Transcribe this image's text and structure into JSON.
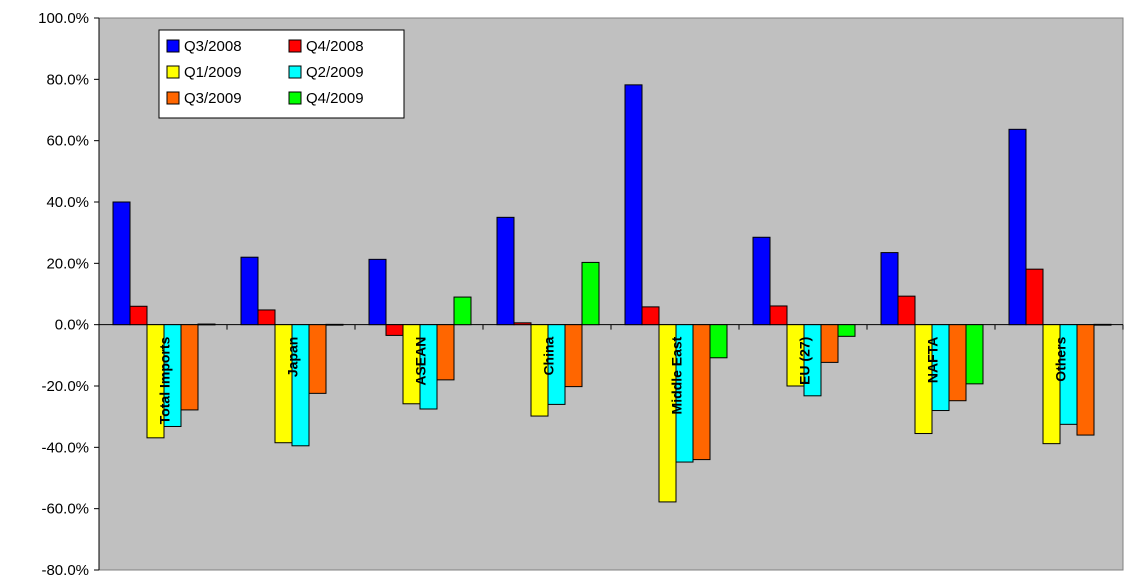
{
  "chart_data": {
    "type": "bar",
    "title": "",
    "xlabel": "",
    "ylabel": "",
    "ylim": [
      -80,
      100
    ],
    "ytick_labels": [
      "100.0%",
      "80.0%",
      "60.0%",
      "40.0%",
      "20.0%",
      "0.0%",
      "-20.0%",
      "-40.0%",
      "-60.0%",
      "-80.0%"
    ],
    "grid": false,
    "plot_background": "#c0c0c0",
    "legend_placement": "top-left",
    "categories": [
      "Total Imports",
      "Japan",
      "ASEAN",
      "China",
      "Middle East",
      "EU (27)",
      "NAFTA",
      "Others"
    ],
    "series": [
      {
        "name": "Q3/2008",
        "color": "#0000ff",
        "values": [
          40.0,
          22.0,
          21.3,
          35.0,
          78.2,
          28.5,
          23.5,
          63.7
        ]
      },
      {
        "name": "Q4/2008",
        "color": "#ff0000",
        "values": [
          6.0,
          4.8,
          -3.5,
          0.6,
          5.8,
          6.1,
          9.3,
          18.1
        ]
      },
      {
        "name": "Q1/2009",
        "color": "#ffff00",
        "values": [
          -36.9,
          -38.5,
          -25.8,
          -29.8,
          -57.8,
          -20.0,
          -35.5,
          -38.8
        ]
      },
      {
        "name": "Q2/2009",
        "color": "#00ffff",
        "values": [
          -33.2,
          -39.5,
          -27.5,
          -26.0,
          -44.8,
          -23.2,
          -28.0,
          -32.5
        ]
      },
      {
        "name": "Q3/2009",
        "color": "#ff6600",
        "values": [
          -27.8,
          -22.4,
          -18.0,
          -20.2,
          -44.0,
          -12.3,
          -24.8,
          -36.0
        ]
      },
      {
        "name": "Q4/2009",
        "color": "#00ff00",
        "values": [
          0.2,
          0.1,
          9.0,
          20.3,
          -10.8,
          -3.8,
          -19.3,
          0.1
        ]
      }
    ]
  }
}
